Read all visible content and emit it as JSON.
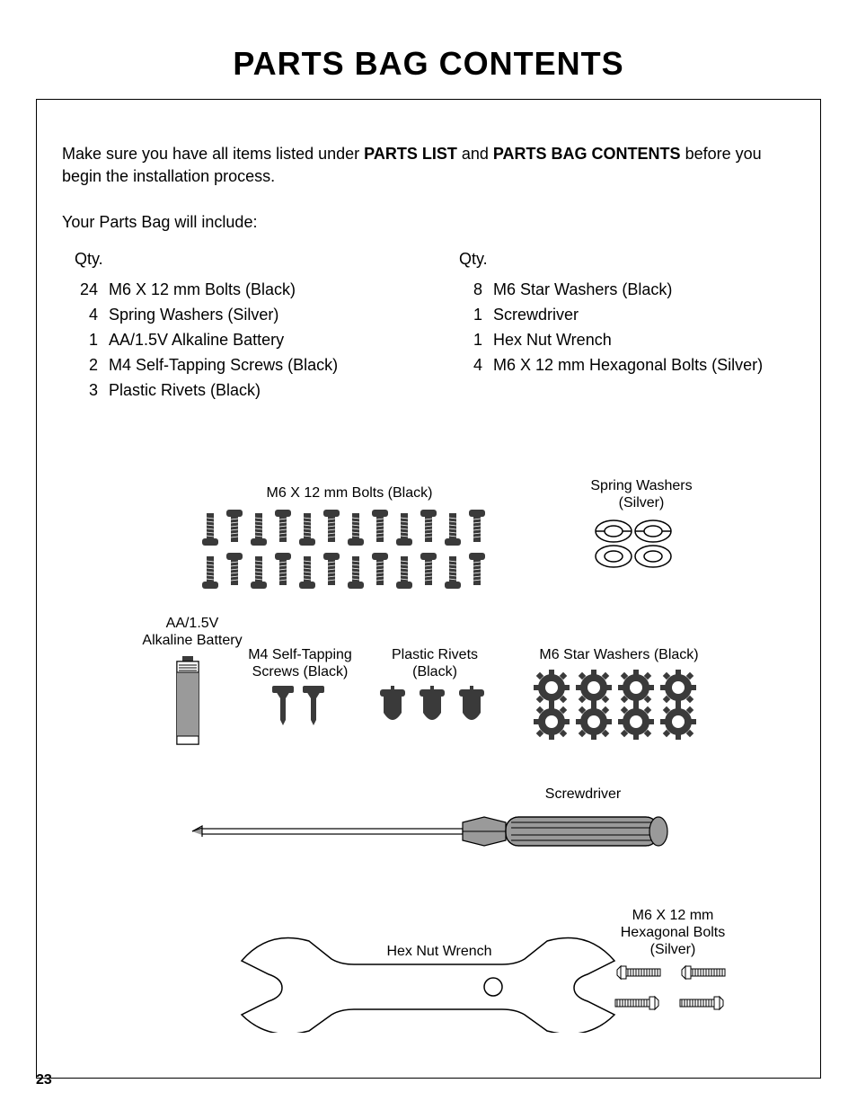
{
  "page_number": "23",
  "title": "PARTS BAG CONTENTS",
  "intro": {
    "text_prefix": "Make sure you have all items listed under ",
    "bold1": "PARTS LIST",
    "text_mid": " and ",
    "bold2": "PARTS BAG CONTENTS",
    "text_suffix": " before you begin the installation process."
  },
  "subhead": "Your Parts Bag will include:",
  "qty_label": "Qty.",
  "left_items": [
    {
      "qty": "24",
      "name": "M6 X 12 mm Bolts (Black)"
    },
    {
      "qty": "4",
      "name": "Spring Washers (Silver)"
    },
    {
      "qty": "1",
      "name": "AA/1.5V Alkaline Battery"
    },
    {
      "qty": "2",
      "name": "M4 Self-Tapping Screws (Black)"
    },
    {
      "qty": "3",
      "name": "Plastic Rivets (Black)"
    }
  ],
  "right_items": [
    {
      "qty": "8",
      "name": "M6 Star Washers (Black)"
    },
    {
      "qty": "1",
      "name": "Screwdriver"
    },
    {
      "qty": "1",
      "name": "Hex Nut Wrench"
    },
    {
      "qty": "4",
      "name": "M6 X 12 mm Hexagonal Bolts (Silver)"
    }
  ],
  "diagram_labels": {
    "bolts": "M6 X 12 mm Bolts (Black)",
    "spring": "Spring Washers\n(Silver)",
    "battery": "AA/1.5V\nAlkaline Battery",
    "selftap": "M4 Self-Tapping\nScrews (Black)",
    "rivets": "Plastic Rivets\n(Black)",
    "star": "M6 Star Washers (Black)",
    "screwdriver": "Screwdriver",
    "wrench": "Hex Nut Wrench",
    "hexbolts": "M6 X 12 mm\nHexagonal Bolts\n(Silver)"
  },
  "colors": {
    "dark": "#3a3a3a",
    "black": "#000000",
    "white": "#ffffff",
    "grey": "#9a9a9a",
    "hatch": "#666666"
  }
}
